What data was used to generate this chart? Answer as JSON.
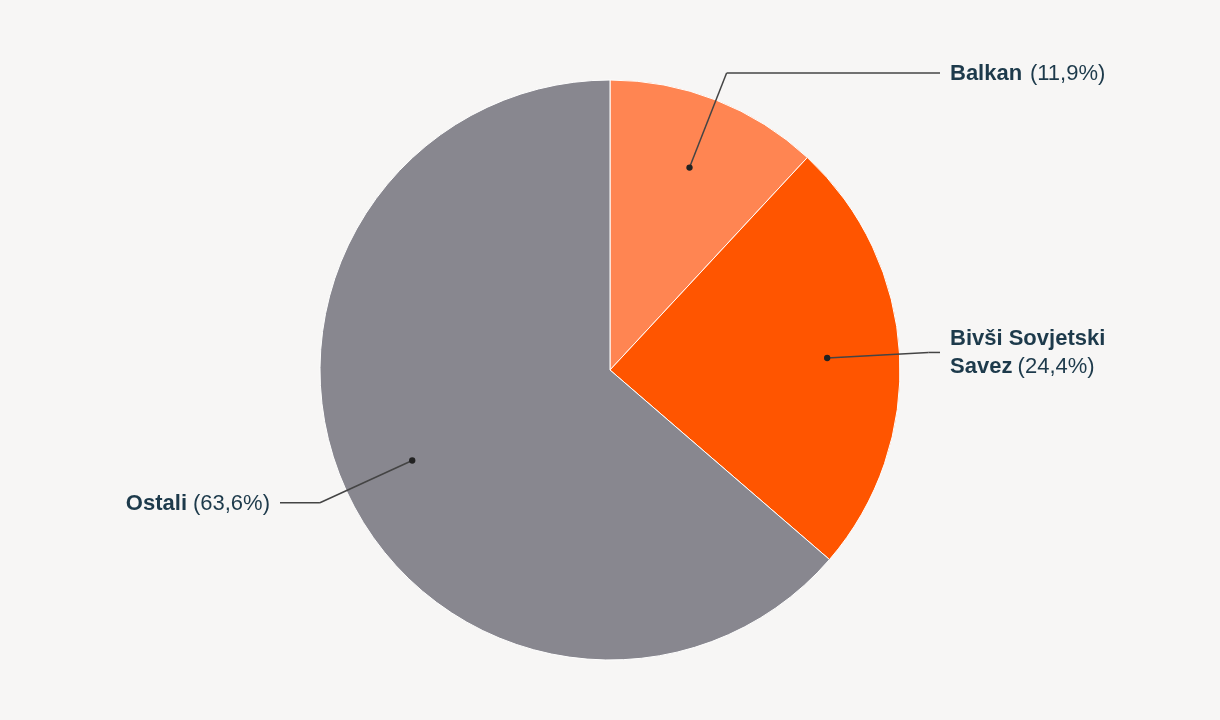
{
  "chart_data": {
    "type": "pie",
    "categories": [
      "Balkan",
      "Bivši Sovjetski Savez",
      "Ostali"
    ],
    "values": [
      11.9,
      24.4,
      63.6
    ],
    "colors": [
      "#ff8552",
      "#ff5500",
      "#88878f"
    ],
    "value_labels": [
      "(11,9%)",
      "(24,4%)",
      "(63,6%)"
    ]
  }
}
